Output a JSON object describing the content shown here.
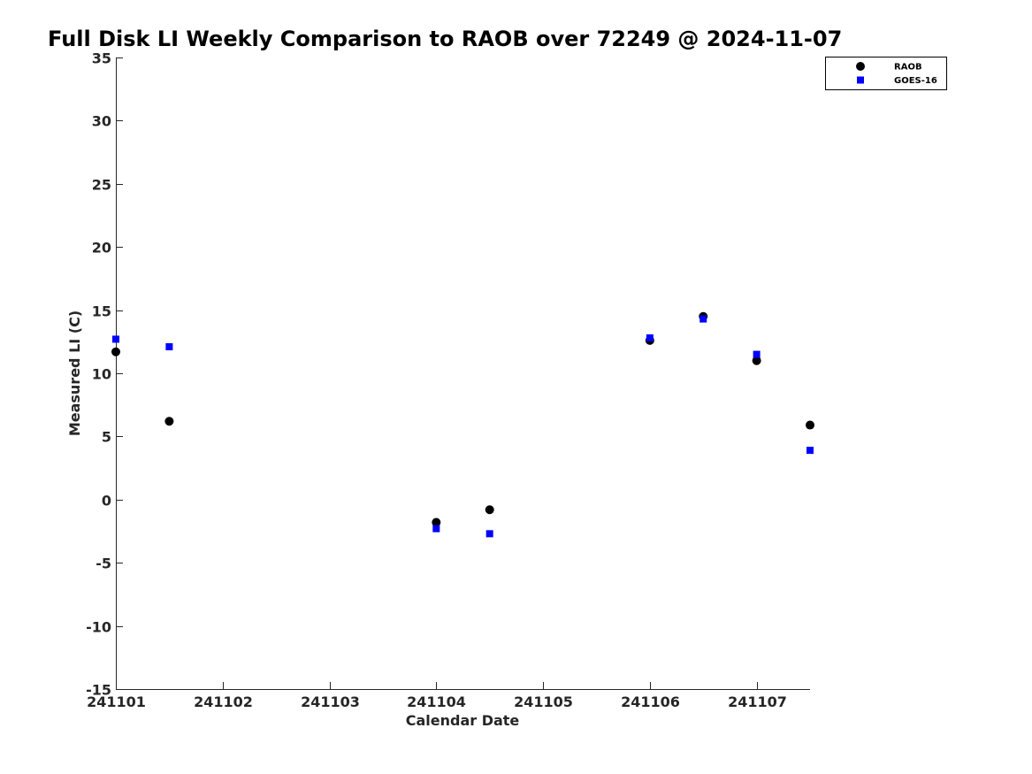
{
  "chart_data": {
    "type": "scatter",
    "title": "Full Disk LI Weekly Comparison to RAOB over 72249 @ 2024-11-07",
    "xlabel": "Calendar Date",
    "ylabel": "Measured LI (C)",
    "xlim": [
      0,
      6.5
    ],
    "ylim": [
      -15,
      35
    ],
    "x_ticks": [
      {
        "value": 0,
        "label": "241101"
      },
      {
        "value": 1,
        "label": "241102"
      },
      {
        "value": 2,
        "label": "241103"
      },
      {
        "value": 3,
        "label": "241104"
      },
      {
        "value": 4,
        "label": "241105"
      },
      {
        "value": 5,
        "label": "241106"
      },
      {
        "value": 6,
        "label": "241107"
      }
    ],
    "y_ticks": [
      {
        "value": -15,
        "label": "-15"
      },
      {
        "value": -10,
        "label": "-10"
      },
      {
        "value": -5,
        "label": "-5"
      },
      {
        "value": 0,
        "label": "0"
      },
      {
        "value": 5,
        "label": "5"
      },
      {
        "value": 10,
        "label": "10"
      },
      {
        "value": 15,
        "label": "15"
      },
      {
        "value": 20,
        "label": "20"
      },
      {
        "value": 25,
        "label": "25"
      },
      {
        "value": 30,
        "label": "30"
      },
      {
        "value": 35,
        "label": "35"
      }
    ],
    "grid": false,
    "legend_position": "top-right",
    "series": [
      {
        "name": "RAOB",
        "marker": "circle",
        "color": "#000000",
        "x": [
          0,
          0.5,
          3,
          3.5,
          5,
          5.5,
          6,
          6.5
        ],
        "y": [
          11.7,
          6.2,
          -1.8,
          -0.8,
          12.6,
          14.5,
          11.0,
          5.9
        ]
      },
      {
        "name": "GOES-16",
        "marker": "square",
        "color": "#0000ff",
        "x": [
          0,
          0.5,
          3,
          3.5,
          5,
          5.5,
          6,
          6.5
        ],
        "y": [
          12.7,
          12.1,
          -2.3,
          -2.7,
          12.8,
          14.3,
          11.5,
          3.9
        ]
      }
    ]
  }
}
